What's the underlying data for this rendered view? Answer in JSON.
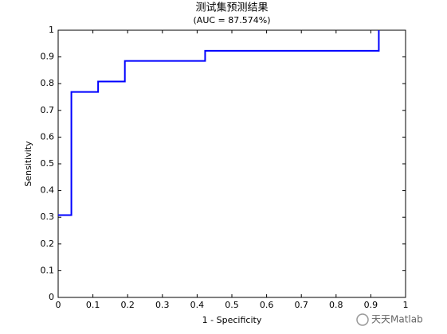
{
  "chart_data": {
    "type": "line",
    "title": "测试集预测结果",
    "subtitle": "(AUC = 87.574%)",
    "x_label": "1 - Specificity",
    "y_label": "Sensitivity",
    "x": [
      0,
      0.038,
      0.038,
      0.115,
      0.115,
      0.192,
      0.192,
      0.423,
      0.423,
      0.923,
      0.923
    ],
    "values": [
      0.308,
      0.308,
      0.769,
      0.769,
      0.808,
      0.808,
      0.885,
      0.885,
      0.923,
      0.923,
      1
    ],
    "color": "#0000ff",
    "xlim": [
      0,
      1
    ],
    "ylim": [
      0,
      1
    ],
    "xticks": [
      0,
      0.1,
      0.2,
      0.3,
      0.4,
      0.5,
      0.6,
      0.7,
      0.8,
      0.9,
      1
    ],
    "yticks": [
      0,
      0.1,
      0.2,
      0.3,
      0.4,
      0.5,
      0.6,
      0.7,
      0.8,
      0.9,
      1
    ],
    "grid": false
  },
  "watermark": "天天Matlab"
}
